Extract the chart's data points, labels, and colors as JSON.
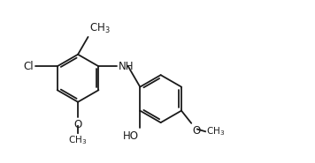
{
  "bg_color": "#ffffff",
  "line_color": "#1a1a1a",
  "lw": 1.3,
  "dbo": 0.07,
  "fs": 8.5,
  "r": 0.72,
  "xlim": [
    0,
    9.5
  ],
  "ylim": [
    0.2,
    5.0
  ]
}
